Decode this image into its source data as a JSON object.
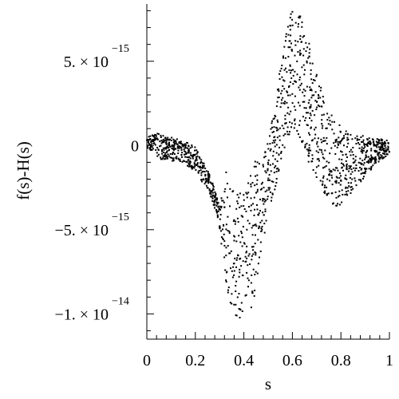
{
  "chart_data": {
    "type": "scatter",
    "title": "",
    "xlabel": "s",
    "ylabel": "f(s)-H(s)",
    "xlim": [
      0,
      1
    ],
    "ylim": [
      -1.15e-14,
      8.4e-15
    ],
    "x_ticks": [
      {
        "value": 0,
        "label": "0"
      },
      {
        "value": 0.2,
        "label": "0.2"
      },
      {
        "value": 0.4,
        "label": "0.4"
      },
      {
        "value": 0.6,
        "label": "0.6"
      },
      {
        "value": 0.8,
        "label": "0.8"
      },
      {
        "value": 1,
        "label": "1"
      }
    ],
    "y_ticks": [
      {
        "value": 5e-15,
        "mantissa": "5. × 10",
        "exponent": "−15"
      },
      {
        "value": 0,
        "mantissa": "0",
        "exponent": ""
      },
      {
        "value": -5e-15,
        "mantissa": "−5. × 10",
        "exponent": "−15"
      },
      {
        "value": -1e-14,
        "mantissa": "−1. × 10",
        "exponent": "−14"
      }
    ],
    "grid": false,
    "legend": "none",
    "point_color": "#000000",
    "envelope": {
      "s": [
        0.0,
        0.05,
        0.1,
        0.15,
        0.2,
        0.25,
        0.28,
        0.3,
        0.33,
        0.36,
        0.4,
        0.44,
        0.47,
        0.5,
        0.53,
        0.56,
        0.6,
        0.63,
        0.66,
        0.7,
        0.74,
        0.78,
        0.8,
        0.84,
        0.88,
        0.92,
        0.96,
        1.0
      ],
      "low": [
        -1e-16,
        -8e-16,
        -9e-16,
        -1e-15,
        -1.6e-15,
        -2.6e-15,
        -3.8e-15,
        -5e-15,
        -8.5e-15,
        -1.03e-14,
        -1.08e-14,
        -9.5e-15,
        -6.5e-15,
        -4e-15,
        -2.5e-15,
        -5e-16,
        1.2e-15,
        5e-16,
        -8e-16,
        -2e-15,
        -3e-15,
        -3.8e-15,
        -3.6e-15,
        -2.9e-15,
        -2.2e-15,
        -1.5e-15,
        -9e-16,
        -5e-16
      ],
      "high": [
        8e-16,
        7e-16,
        5e-16,
        3e-16,
        -1e-16,
        -1.4e-15,
        -2.6e-15,
        -3.6e-15,
        -1.2e-15,
        -2.8e-15,
        -2.4e-15,
        -1e-15,
        -7e-16,
        2e-16,
        2.5e-15,
        5.8e-15,
        8.4e-15,
        7.8e-15,
        6.5e-15,
        4.5e-15,
        2.2e-15,
        1.5e-15,
        1.1e-15,
        7e-16,
        6e-16,
        5e-16,
        4e-16,
        3e-16
      ]
    }
  }
}
